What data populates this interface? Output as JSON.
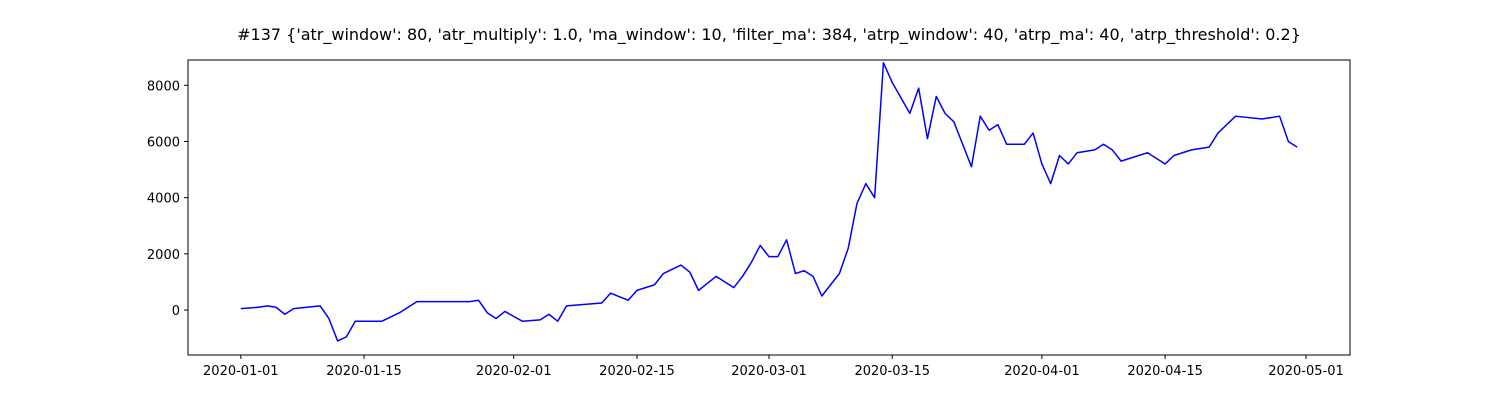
{
  "chart_data": {
    "type": "line",
    "title": "#137 {'atr_window': 80, 'atr_multiply': 1.0, 'ma_window': 10, 'filter_ma': 384, 'atrp_window': 40, 'atrp_ma': 40, 'atrp_threshold': 0.2}",
    "x": [
      "2020-01-01",
      "2020-01-03",
      "2020-01-04",
      "2020-01-05",
      "2020-01-06",
      "2020-01-07",
      "2020-01-10",
      "2020-01-11",
      "2020-01-12",
      "2020-01-13",
      "2020-01-14",
      "2020-01-17",
      "2020-01-19",
      "2020-01-21",
      "2020-01-27",
      "2020-01-28",
      "2020-01-29",
      "2020-01-30",
      "2020-01-31",
      "2020-02-02",
      "2020-02-04",
      "2020-02-05",
      "2020-02-06",
      "2020-02-07",
      "2020-02-11",
      "2020-02-12",
      "2020-02-14",
      "2020-02-15",
      "2020-02-17",
      "2020-02-18",
      "2020-02-20",
      "2020-02-21",
      "2020-02-22",
      "2020-02-24",
      "2020-02-26",
      "2020-02-27",
      "2020-02-28",
      "2020-02-29",
      "2020-03-01",
      "2020-03-02",
      "2020-03-03",
      "2020-03-04",
      "2020-03-05",
      "2020-03-06",
      "2020-03-07",
      "2020-03-09",
      "2020-03-10",
      "2020-03-11",
      "2020-03-12",
      "2020-03-13",
      "2020-03-14",
      "2020-03-15",
      "2020-03-17",
      "2020-03-18",
      "2020-03-19",
      "2020-03-20",
      "2020-03-21",
      "2020-03-22",
      "2020-03-24",
      "2020-03-25",
      "2020-03-26",
      "2020-03-27",
      "2020-03-28",
      "2020-03-30",
      "2020-03-31",
      "2020-04-01",
      "2020-04-02",
      "2020-04-03",
      "2020-04-04",
      "2020-04-05",
      "2020-04-07",
      "2020-04-08",
      "2020-04-09",
      "2020-04-10",
      "2020-04-13",
      "2020-04-15",
      "2020-04-16",
      "2020-04-18",
      "2020-04-20",
      "2020-04-21",
      "2020-04-23",
      "2020-04-26",
      "2020-04-28",
      "2020-04-29",
      "2020-04-30"
    ],
    "series": [
      {
        "color": "#0000ff",
        "values": [
          50,
          100,
          150,
          100,
          -150,
          50,
          150,
          -300,
          -1100,
          -950,
          -400,
          -400,
          -100,
          300,
          300,
          350,
          -100,
          -300,
          -50,
          -400,
          -350,
          -150,
          -400,
          150,
          250,
          600,
          350,
          700,
          900,
          1300,
          1600,
          1350,
          700,
          1200,
          800,
          1200,
          1700,
          2300,
          1900,
          1900,
          2500,
          1300,
          1400,
          1200,
          500,
          1300,
          2200,
          3800,
          4500,
          4000,
          8800,
          8100,
          7000,
          7900,
          6100,
          7600,
          7000,
          6700,
          5100,
          6900,
          6400,
          6600,
          5900,
          5900,
          6300,
          5200,
          4500,
          5500,
          5200,
          5600,
          5700,
          5900,
          5700,
          5300,
          5600,
          5200,
          5500,
          5700,
          5800,
          6300,
          6900,
          6800,
          6900,
          6000,
          5800
        ]
      }
    ],
    "xlim": [
      "2019-12-26",
      "2020-05-06"
    ],
    "xticks": [
      "2020-01-01",
      "2020-01-15",
      "2020-02-01",
      "2020-02-15",
      "2020-03-01",
      "2020-03-15",
      "2020-04-01",
      "2020-04-15",
      "2020-05-01"
    ],
    "ylim": [
      -1600,
      8900
    ],
    "yticks": [
      0,
      2000,
      4000,
      6000,
      8000
    ]
  }
}
